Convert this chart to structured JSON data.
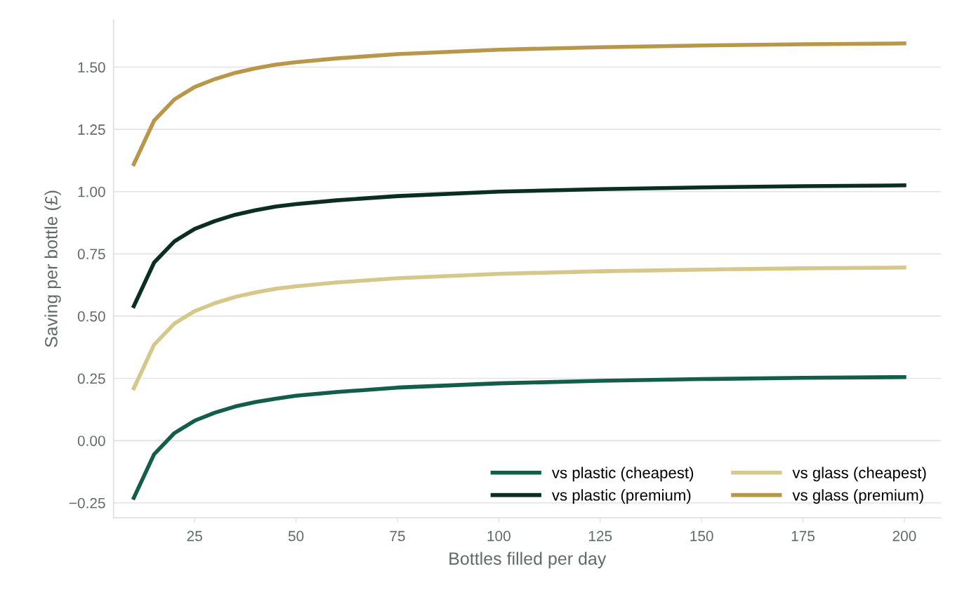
{
  "chart_data": {
    "type": "line",
    "xlabel": "Bottles filled per day",
    "ylabel": "Saving per bottle (£)",
    "x": [
      10,
      15,
      20,
      25,
      30,
      35,
      40,
      45,
      50,
      60,
      75,
      100,
      125,
      150,
      175,
      200
    ],
    "series": [
      {
        "name": "vs plastic (cheapest)",
        "color": "#135e4b",
        "values": [
          -0.23,
          -0.055,
          0.03,
          0.08,
          0.112,
          0.137,
          0.155,
          0.168,
          0.18,
          0.195,
          0.213,
          0.23,
          0.24,
          0.247,
          0.252,
          0.255
        ]
      },
      {
        "name": "vs plastic (premium)",
        "color": "#0a2e22",
        "values": [
          0.54,
          0.715,
          0.8,
          0.85,
          0.882,
          0.907,
          0.925,
          0.94,
          0.95,
          0.965,
          0.982,
          1.0,
          1.01,
          1.017,
          1.022,
          1.025
        ]
      },
      {
        "name": "vs glass (cheapest)",
        "color": "#d6c78b",
        "values": [
          0.21,
          0.385,
          0.47,
          0.52,
          0.552,
          0.577,
          0.595,
          0.61,
          0.62,
          0.635,
          0.652,
          0.67,
          0.68,
          0.687,
          0.692,
          0.695
        ]
      },
      {
        "name": "vs glass (premium)",
        "color": "#b8974a",
        "values": [
          1.11,
          1.285,
          1.37,
          1.42,
          1.452,
          1.477,
          1.495,
          1.51,
          1.52,
          1.535,
          1.552,
          1.57,
          1.58,
          1.587,
          1.592,
          1.595
        ]
      }
    ],
    "xlim": [
      5,
      209
    ],
    "xticks": [
      25,
      50,
      75,
      100,
      125,
      150,
      175,
      200
    ],
    "ylim": [
      -0.31,
      1.69
    ],
    "yticks": [
      {
        "value": -0.25,
        "label": "−0.25"
      },
      {
        "value": 0,
        "label": "0.00"
      },
      {
        "value": 0.25,
        "label": "0.25"
      },
      {
        "value": 0.5,
        "label": "0.50"
      },
      {
        "value": 0.75,
        "label": "0.75"
      },
      {
        "value": 1.0,
        "label": "1.00"
      },
      {
        "value": 1.25,
        "label": "1.25"
      },
      {
        "value": 1.5,
        "label": "1.50"
      }
    ],
    "grid": "y",
    "legend": "bottom right",
    "marker": "none",
    "line_style": "solid"
  }
}
